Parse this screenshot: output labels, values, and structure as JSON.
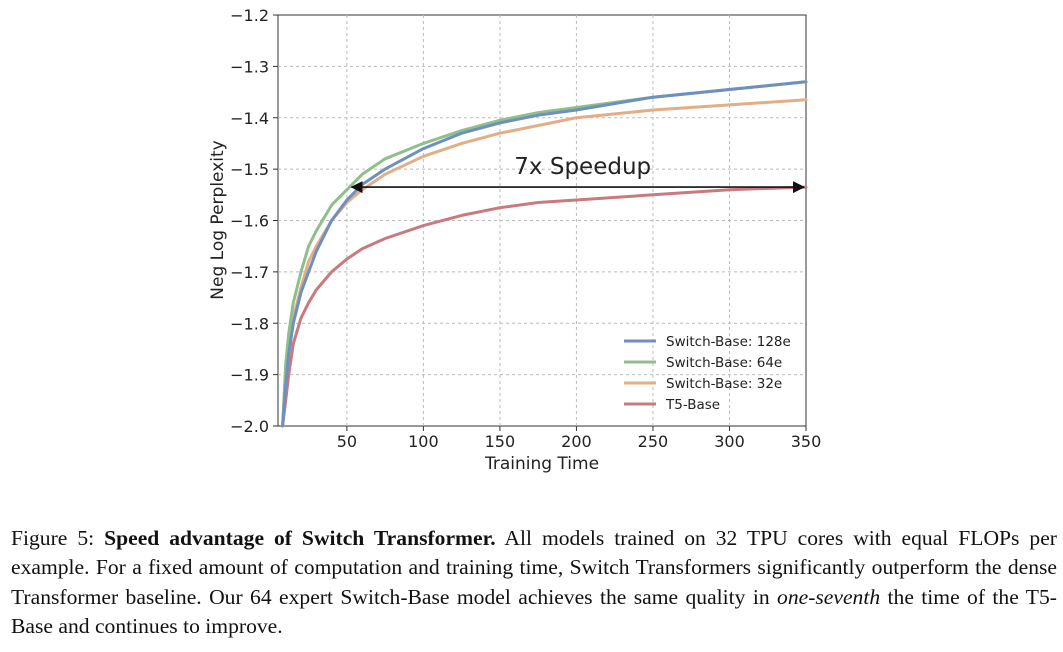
{
  "chart_data": {
    "type": "line",
    "xlabel": "Training Time",
    "ylabel": "Neg Log Perplexity",
    "xlim": [
      5,
      350
    ],
    "ylim": [
      -2.0,
      -1.2
    ],
    "xticks": [
      50,
      100,
      150,
      200,
      250,
      300,
      350
    ],
    "yticks": [
      -2.0,
      -1.9,
      -1.8,
      -1.7,
      -1.6,
      -1.5,
      -1.4,
      -1.3,
      -1.2
    ],
    "xtick_labels": [
      "50",
      "100",
      "150",
      "200",
      "250",
      "300",
      "350"
    ],
    "ytick_labels": [
      "−2.0",
      "−1.9",
      "−1.8",
      "−1.7",
      "−1.6",
      "−1.5",
      "−1.4",
      "−1.3",
      "−1.2"
    ],
    "grid": true,
    "legend_position": "bottom-right",
    "series": [
      {
        "name": "Switch-Base: 128e",
        "color": "#6f8fbf",
        "x": [
          8,
          10,
          12,
          15,
          20,
          25,
          30,
          40,
          50,
          60,
          75,
          100,
          125,
          150,
          175,
          200,
          250,
          300,
          350
        ],
        "y": [
          -2.0,
          -1.92,
          -1.86,
          -1.8,
          -1.74,
          -1.7,
          -1.66,
          -1.6,
          -1.56,
          -1.53,
          -1.5,
          -1.46,
          -1.43,
          -1.41,
          -1.395,
          -1.385,
          -1.36,
          -1.345,
          -1.33
        ]
      },
      {
        "name": "Switch-Base: 64e",
        "color": "#8fbf8a",
        "x": [
          8,
          10,
          12,
          15,
          20,
          25,
          30,
          40,
          50,
          60,
          75,
          100,
          125,
          150,
          175,
          200,
          250,
          300,
          350
        ],
        "y": [
          -2.0,
          -1.88,
          -1.82,
          -1.76,
          -1.7,
          -1.65,
          -1.62,
          -1.57,
          -1.54,
          -1.51,
          -1.48,
          -1.45,
          -1.425,
          -1.405,
          -1.39,
          -1.38,
          -1.36,
          -1.345,
          -1.33
        ]
      },
      {
        "name": "Switch-Base: 32e",
        "color": "#e3ae86",
        "x": [
          8,
          10,
          12,
          15,
          20,
          25,
          30,
          40,
          50,
          60,
          75,
          100,
          125,
          150,
          175,
          200,
          250,
          300,
          350
        ],
        "y": [
          -2.0,
          -1.9,
          -1.84,
          -1.79,
          -1.73,
          -1.68,
          -1.65,
          -1.6,
          -1.565,
          -1.54,
          -1.51,
          -1.475,
          -1.45,
          -1.43,
          -1.415,
          -1.4,
          -1.385,
          -1.375,
          -1.365
        ]
      },
      {
        "name": "T5-Base",
        "color": "#c97a7e",
        "x": [
          8,
          10,
          12,
          15,
          20,
          25,
          30,
          40,
          50,
          60,
          75,
          100,
          125,
          150,
          175,
          200,
          250,
          300,
          350
        ],
        "y": [
          -2.0,
          -1.95,
          -1.9,
          -1.84,
          -1.79,
          -1.76,
          -1.735,
          -1.7,
          -1.675,
          -1.655,
          -1.635,
          -1.61,
          -1.59,
          -1.575,
          -1.565,
          -1.56,
          -1.55,
          -1.54,
          -1.535
        ]
      }
    ],
    "annotations": [
      {
        "text": "7x Speedup",
        "arrow_from": [
          53,
          -1.535
        ],
        "arrow_to": [
          350,
          -1.535
        ]
      }
    ]
  },
  "caption": {
    "prefix": "Figure 5: ",
    "bold": "Speed advantage of Switch Transformer.",
    "part1": " All models trained on 32 TPU cores with equal FLOPs per example.  For a fixed amount of computation and training time, Switch Transformers significantly outperform the dense Transformer baseline. Our 64 expert Switch-Base model achieves the same quality in ",
    "italic": "one-seventh",
    "part2": " the time of the T5-Base and continues to improve."
  }
}
